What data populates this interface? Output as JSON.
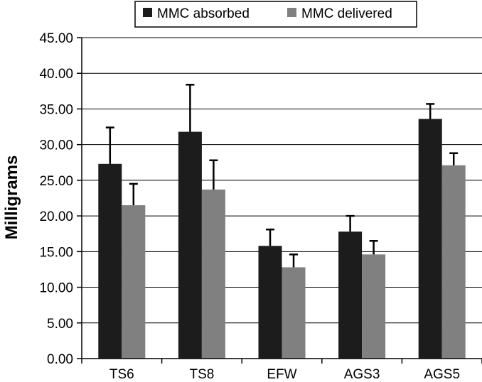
{
  "chart_data": {
    "type": "bar",
    "categories": [
      "TS6",
      "TS8",
      "EFW",
      "AGS3",
      "AGS5"
    ],
    "series": [
      {
        "name": "MMC absorbed",
        "color": "#1c1c1c",
        "values": [
          27.3,
          31.8,
          15.8,
          17.8,
          33.6
        ],
        "errors": [
          5.1,
          6.6,
          2.3,
          2.2,
          2.1
        ]
      },
      {
        "name": "MMC delivered",
        "color": "#808080",
        "values": [
          21.5,
          23.7,
          12.8,
          14.6,
          27.1
        ],
        "errors": [
          3.0,
          4.1,
          1.8,
          1.9,
          1.7
        ]
      }
    ],
    "title": "",
    "xlabel": "",
    "ylabel": "Milligrams",
    "ylim": [
      0,
      45
    ],
    "yticks": [
      "0.00",
      "5.00",
      "10.00",
      "15.00",
      "20.00",
      "25.00",
      "30.00",
      "35.00",
      "40.00",
      "45.00"
    ],
    "grid": true,
    "legend_position": "top-center"
  }
}
